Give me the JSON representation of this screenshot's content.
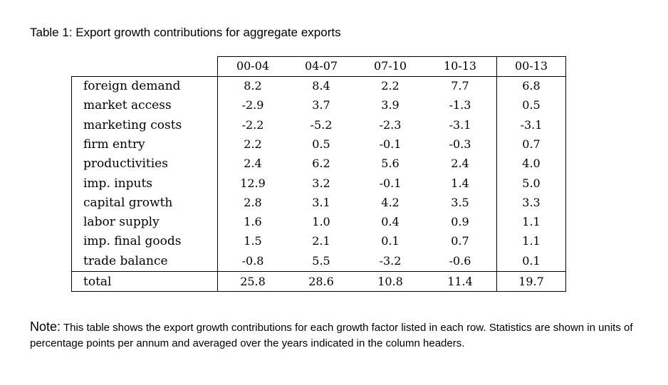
{
  "caption": "Table 1: Export growth contributions for aggregate exports",
  "table": {
    "columns": [
      "00-04",
      "04-07",
      "07-10",
      "10-13",
      "00-13"
    ],
    "rows": [
      {
        "label": "foreign demand",
        "values": [
          "8.2",
          "8.4",
          "2.2",
          "7.7",
          "6.8"
        ]
      },
      {
        "label": "market access",
        "values": [
          "-2.9",
          "3.7",
          "3.9",
          "-1.3",
          "0.5"
        ]
      },
      {
        "label": "marketing costs",
        "values": [
          "-2.2",
          "-5.2",
          "-2.3",
          "-3.1",
          "-3.1"
        ]
      },
      {
        "label": "firm entry",
        "values": [
          "2.2",
          "0.5",
          "-0.1",
          "-0.3",
          "0.7"
        ]
      },
      {
        "label": "productivities",
        "values": [
          "2.4",
          "6.2",
          "5.6",
          "2.4",
          "4.0"
        ]
      },
      {
        "label": "imp. inputs",
        "values": [
          "12.9",
          "3.2",
          "-0.1",
          "1.4",
          "5.0"
        ]
      },
      {
        "label": "capital growth",
        "values": [
          "2.8",
          "3.1",
          "4.2",
          "3.5",
          "3.3"
        ]
      },
      {
        "label": "labor supply",
        "values": [
          "1.6",
          "1.0",
          "0.4",
          "0.9",
          "1.1"
        ]
      },
      {
        "label": "imp. final goods",
        "values": [
          "1.5",
          "2.1",
          "0.1",
          "0.7",
          "1.1"
        ]
      },
      {
        "label": "trade balance",
        "values": [
          "-0.8",
          "5.5",
          "-3.2",
          "-0.6",
          "0.1"
        ]
      }
    ],
    "total": {
      "label": "total",
      "values": [
        "25.8",
        "28.6",
        "10.8",
        "11.4",
        "19.7"
      ]
    }
  },
  "note": {
    "label": "Note:",
    "text": "This table shows the export growth contributions for each growth factor listed in each row. Statistics are shown in units of percentage points per annum and averaged over the years indicated in the column headers."
  }
}
